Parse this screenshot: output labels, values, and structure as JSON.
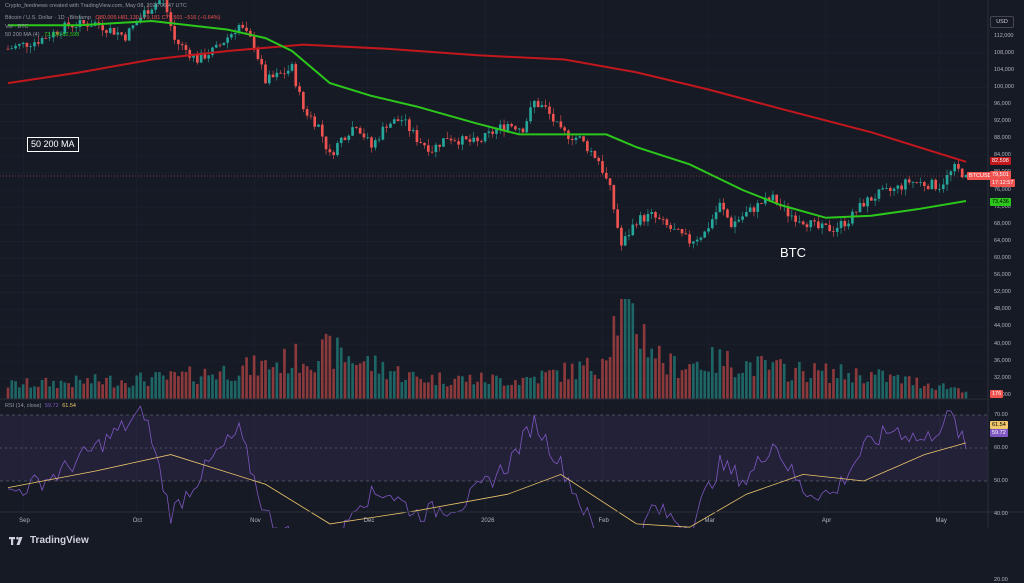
{
  "header": {
    "credit": "Crypto_feednews created with TradingView.com, May 08, 2026 06:47 UTC",
    "symbol_line": "Bitcoin / U.S. Dollar · 1D · Bitstamp",
    "ohlc": "O80,005 H81,130 L79,181 C79,501 −516 (−0.64%)",
    "vol_line": "Vol · BTC",
    "ma_line": "50 200 MA (4)",
    "ma_values": "73,436 82,598",
    "currency": "USD"
  },
  "price_axis": {
    "ticks": [
      "112,000",
      "108,000",
      "104,000",
      "100,000",
      "96,000",
      "92,000",
      "88,000",
      "84,000",
      "80,000",
      "76,000",
      "72,000",
      "68,000",
      "64,000",
      "60,000",
      "56,000",
      "52,000",
      "48,000",
      "44,000",
      "40,000",
      "36,000",
      "32,000",
      "28,000"
    ],
    "badges": {
      "ma200": "82,598",
      "symbol": "BTCUSD",
      "last": "79,501",
      "countdown": "17:12:57",
      "ma50": "73,436",
      "volume": "176"
    }
  },
  "rsi": {
    "label": "RSI (14, close)",
    "rsi_value": "59.72",
    "ma_value": "61.54",
    "ticks": [
      "70.00",
      "60.00",
      "50.00",
      "40.00",
      "30.00",
      "20.00"
    ]
  },
  "time_axis": [
    "Sep",
    "Oct",
    "Nov",
    "Dec",
    "2026",
    "Feb",
    "Mar",
    "Apr",
    "May"
  ],
  "annotations": {
    "ma_box": "50 200 MA",
    "btc": "BTC"
  },
  "footer": {
    "brand": "TradingView"
  },
  "colors": {
    "up": "#26a69a",
    "down": "#ef5350",
    "ma50": "#2cc71b",
    "ma200": "#c2171d",
    "rsi": "#7e57c2",
    "rsi_ma": "#f0c76b"
  },
  "chart_data": {
    "type": "candlestick",
    "symbol": "BTCUSD",
    "interval": "1D",
    "price_range": [
      26000,
      116000
    ],
    "rsi_range": [
      14,
      75
    ],
    "price_path": [
      [
        "2025-08-28",
        109000
      ],
      [
        "2025-09-05",
        111000
      ],
      [
        "2025-09-13",
        114500
      ],
      [
        "2025-09-20",
        115000
      ],
      [
        "2025-09-28",
        112000
      ],
      [
        "2025-10-03",
        117500
      ],
      [
        "2025-10-08",
        121000
      ],
      [
        "2025-10-11",
        111000
      ],
      [
        "2025-10-17",
        106500
      ],
      [
        "2025-10-22",
        109000
      ],
      [
        "2025-10-28",
        114500
      ],
      [
        "2025-11-01",
        110000
      ],
      [
        "2025-11-04",
        101500
      ],
      [
        "2025-11-08",
        103000
      ],
      [
        "2025-11-11",
        104500
      ],
      [
        "2025-11-14",
        95000
      ],
      [
        "2025-11-18",
        91000
      ],
      [
        "2025-11-21",
        84000
      ],
      [
        "2025-11-24",
        88000
      ],
      [
        "2025-11-28",
        91500
      ],
      [
        "2025-12-02",
        86000
      ],
      [
        "2025-12-06",
        91500
      ],
      [
        "2025-12-10",
        92500
      ],
      [
        "2025-12-14",
        88000
      ],
      [
        "2025-12-18",
        85500
      ],
      [
        "2025-12-22",
        88500
      ],
      [
        "2025-12-26",
        87500
      ],
      [
        "2025-12-30",
        87000
      ],
      [
        "2026-01-03",
        89500
      ],
      [
        "2026-01-07",
        91500
      ],
      [
        "2026-01-11",
        90500
      ],
      [
        "2026-01-14",
        96500
      ],
      [
        "2026-01-17",
        95000
      ],
      [
        "2026-01-21",
        89500
      ],
      [
        "2026-01-26",
        88000
      ],
      [
        "2026-01-31",
        83000
      ],
      [
        "2026-02-03",
        76000
      ],
      [
        "2026-02-06",
        63000
      ],
      [
        "2026-02-10",
        69000
      ],
      [
        "2026-02-14",
        70000
      ],
      [
        "2026-02-18",
        67500
      ],
      [
        "2026-02-24",
        64000
      ],
      [
        "2026-02-28",
        66000
      ],
      [
        "2026-03-04",
        72500
      ],
      [
        "2026-03-07",
        68000
      ],
      [
        "2026-03-11",
        70500
      ],
      [
        "2026-03-15",
        73000
      ],
      [
        "2026-03-18",
        74000
      ],
      [
        "2026-03-22",
        70500
      ],
      [
        "2026-03-26",
        69000
      ],
      [
        "2026-03-30",
        67000
      ],
      [
        "2026-04-03",
        67000
      ],
      [
        "2026-04-07",
        69000
      ],
      [
        "2026-04-11",
        73000
      ],
      [
        "2026-04-15",
        75000
      ],
      [
        "2026-04-19",
        76000
      ],
      [
        "2026-04-23",
        78000
      ],
      [
        "2026-04-27",
        77500
      ],
      [
        "2026-05-01",
        77000
      ],
      [
        "2026-05-05",
        81000
      ],
      [
        "2026-05-08",
        79501
      ]
    ],
    "ma50_path": [
      [
        "2025-08-28",
        114500
      ],
      [
        "2025-09-16",
        114500
      ],
      [
        "2025-10-05",
        115500
      ],
      [
        "2025-10-25",
        113500
      ],
      [
        "2025-11-04",
        111500
      ],
      [
        "2025-11-11",
        108500
      ],
      [
        "2025-11-21",
        101000
      ],
      [
        "2025-12-02",
        98000
      ],
      [
        "2025-12-14",
        95500
      ],
      [
        "2025-12-30",
        91500
      ],
      [
        "2026-01-10",
        89000
      ],
      [
        "2026-01-22",
        89000
      ],
      [
        "2026-02-02",
        89000
      ],
      [
        "2026-02-10",
        86000
      ],
      [
        "2026-02-24",
        82000
      ],
      [
        "2026-03-10",
        76000
      ],
      [
        "2026-03-20",
        72500
      ],
      [
        "2026-04-01",
        69500
      ],
      [
        "2026-04-13",
        70000
      ],
      [
        "2026-04-25",
        71500
      ],
      [
        "2026-05-08",
        73436
      ]
    ],
    "ma200_path": [
      [
        "2025-08-28",
        101000
      ],
      [
        "2025-09-16",
        103500
      ],
      [
        "2025-10-05",
        106500
      ],
      [
        "2025-10-25",
        108500
      ],
      [
        "2025-11-14",
        110000
      ],
      [
        "2025-12-06",
        109000
      ],
      [
        "2025-12-30",
        107500
      ],
      [
        "2026-01-22",
        106500
      ],
      [
        "2026-02-10",
        103500
      ],
      [
        "2026-03-01",
        99500
      ],
      [
        "2026-03-20",
        95000
      ],
      [
        "2026-04-13",
        89500
      ],
      [
        "2026-05-08",
        82598
      ]
    ],
    "volume_profile": [
      [
        "2025-08-28",
        0.15
      ],
      [
        "2025-10-10",
        0.22
      ],
      [
        "2025-11-04",
        0.35
      ],
      [
        "2025-11-21",
        0.5
      ],
      [
        "2025-12-14",
        0.22
      ],
      [
        "2026-01-10",
        0.2
      ],
      [
        "2026-01-31",
        0.35
      ],
      [
        "2026-02-06",
        1.0
      ],
      [
        "2026-02-18",
        0.35
      ],
      [
        "2026-03-04",
        0.4
      ],
      [
        "2026-03-22",
        0.3
      ],
      [
        "2026-04-13",
        0.25
      ],
      [
        "2026-05-08",
        0.1
      ]
    ],
    "rsi_path": [
      [
        "2025-08-28",
        46
      ],
      [
        "2025-09-10",
        52
      ],
      [
        "2025-09-20",
        60
      ],
      [
        "2025-10-03",
        71
      ],
      [
        "2025-10-10",
        40
      ],
      [
        "2025-10-22",
        58
      ],
      [
        "2025-10-28",
        65
      ],
      [
        "2025-11-04",
        40
      ],
      [
        "2025-11-14",
        30
      ],
      [
        "2025-11-21",
        25
      ],
      [
        "2025-11-28",
        44
      ],
      [
        "2025-12-06",
        47
      ],
      [
        "2025-12-14",
        40
      ],
      [
        "2025-12-26",
        43
      ],
      [
        "2026-01-07",
        55
      ],
      [
        "2026-01-14",
        68
      ],
      [
        "2026-01-21",
        55
      ],
      [
        "2026-02-03",
        26
      ],
      [
        "2026-02-06",
        17
      ],
      [
        "2026-02-14",
        42
      ],
      [
        "2026-02-24",
        36
      ],
      [
        "2026-03-04",
        55
      ],
      [
        "2026-03-11",
        50
      ],
      [
        "2026-03-18",
        62
      ],
      [
        "2026-03-26",
        47
      ],
      [
        "2026-04-03",
        46
      ],
      [
        "2026-04-11",
        60
      ],
      [
        "2026-04-19",
        66
      ],
      [
        "2026-04-27",
        62
      ],
      [
        "2026-05-04",
        70
      ],
      [
        "2026-05-08",
        59.72
      ]
    ],
    "rsi_ma_path": [
      [
        "2025-08-28",
        48
      ],
      [
        "2025-09-20",
        53
      ],
      [
        "2025-10-10",
        58
      ],
      [
        "2025-11-04",
        49
      ],
      [
        "2025-11-21",
        37
      ],
      [
        "2025-12-14",
        41
      ],
      [
        "2026-01-07",
        46
      ],
      [
        "2026-01-21",
        52
      ],
      [
        "2026-02-10",
        37
      ],
      [
        "2026-02-24",
        36
      ],
      [
        "2026-03-11",
        46
      ],
      [
        "2026-03-26",
        52
      ],
      [
        "2026-04-11",
        50
      ],
      [
        "2026-04-27",
        58
      ],
      [
        "2026-05-08",
        61.54
      ]
    ],
    "xlim": [
      "2025-08-28",
      "2026-05-08"
    ],
    "grid": true
  }
}
